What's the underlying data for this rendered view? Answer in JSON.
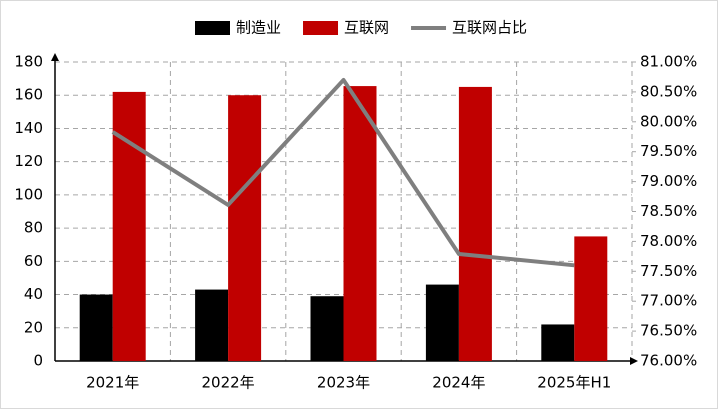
{
  "chart_data": {
    "type": "bar-line",
    "categories": [
      "2021年",
      "2022年",
      "2023年",
      "2024年",
      "2025年H1"
    ],
    "series": [
      {
        "name": "制造业",
        "type": "bar",
        "color": "#000000",
        "values": [
          40,
          43,
          39,
          46,
          22
        ]
      },
      {
        "name": "互联网",
        "type": "bar",
        "color": "#c00000",
        "values": [
          162,
          160,
          165.5,
          165,
          75
        ]
      },
      {
        "name": "互联网占比",
        "type": "line",
        "axis": "y2",
        "color": "#7f7f7f",
        "values": [
          79.83,
          78.61,
          80.7,
          77.79,
          77.6
        ]
      }
    ],
    "ylim": [
      0,
      180
    ],
    "yticks": [
      0,
      20,
      40,
      60,
      80,
      100,
      120,
      140,
      160,
      180
    ],
    "y2lim": [
      76,
      81
    ],
    "y2ticks": [
      {
        "value": 76,
        "label": "76.00%"
      },
      {
        "value": 76.5,
        "label": "76.50%"
      },
      {
        "value": 77,
        "label": "77.00%"
      },
      {
        "value": 77.5,
        "label": "77.50%"
      },
      {
        "value": 78,
        "label": "78.00%"
      },
      {
        "value": 78.5,
        "label": "78.50%"
      },
      {
        "value": 79,
        "label": "79.00%"
      },
      {
        "value": 79.5,
        "label": "79.50%"
      },
      {
        "value": 80,
        "label": "80.00%"
      },
      {
        "value": 80.5,
        "label": "80.50%"
      },
      {
        "value": 81,
        "label": "81.00%"
      }
    ],
    "grid": true
  }
}
